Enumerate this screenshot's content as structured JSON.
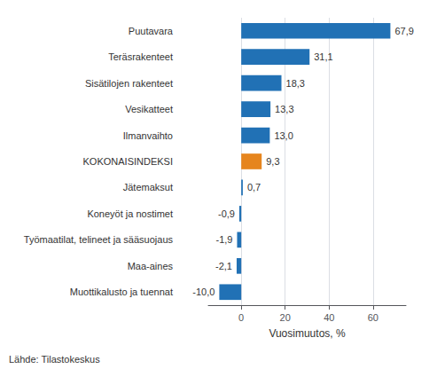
{
  "chart_data": {
    "type": "bar",
    "orientation": "horizontal",
    "categories": [
      "Puutavara",
      "Teräsrakenteet",
      "Sisätilojen rakenteet",
      "Vesikatteet",
      "Ilmanvaihto",
      "KOKONAISINDEKSI",
      "Jätemaksut",
      "Koneyöt ja nostimet",
      "Työmaatilat, telineet ja sääsuojaus",
      "Maa-aines",
      "Muottikalusto ja tuennat"
    ],
    "values": [
      67.9,
      31.1,
      18.3,
      13.3,
      13.0,
      9.3,
      0.7,
      -0.9,
      -1.9,
      -2.1,
      -10.0
    ],
    "value_labels": [
      "67,9",
      "31,1",
      "18,3",
      "13,3",
      "13,0",
      "9,3",
      "0,7",
      "-0,9",
      "-1,9",
      "-2,1",
      "-10,0"
    ],
    "colors": [
      "#2171b5",
      "#2171b5",
      "#2171b5",
      "#2171b5",
      "#2171b5",
      "#e6851e",
      "#2171b5",
      "#2171b5",
      "#2171b5",
      "#2171b5",
      "#2171b5"
    ],
    "xlabel": "Vuosimuutos, %",
    "footnote": "Lähde: Tilastokeskus",
    "xlim": [
      -15,
      75
    ],
    "xticks": [
      0,
      20,
      40,
      60
    ],
    "grid": true,
    "data_labels": true
  }
}
